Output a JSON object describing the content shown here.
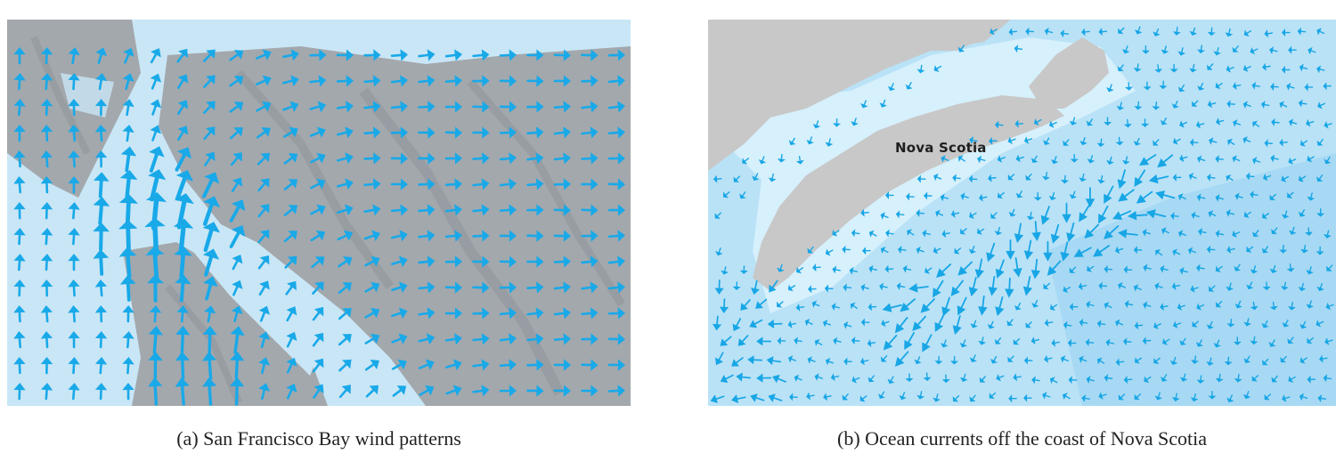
{
  "panels": [
    {
      "caption": "(a)  San Francisco Bay wind patterns",
      "colors": {
        "land": "#a3a8ad",
        "land_dark": "#8b9196",
        "water": "#c9e6f6",
        "arrow": "#19a9e8"
      }
    },
    {
      "caption": "(b) Ocean currents off the coast of Nova Scotia",
      "label": "Nova Scotia",
      "colors": {
        "land": "#c8c8c8",
        "shelf": "#d6f0fc",
        "water": "#b9e2f7",
        "deep": "#a7d9f4",
        "arrow": "#18a6e5"
      }
    }
  ]
}
